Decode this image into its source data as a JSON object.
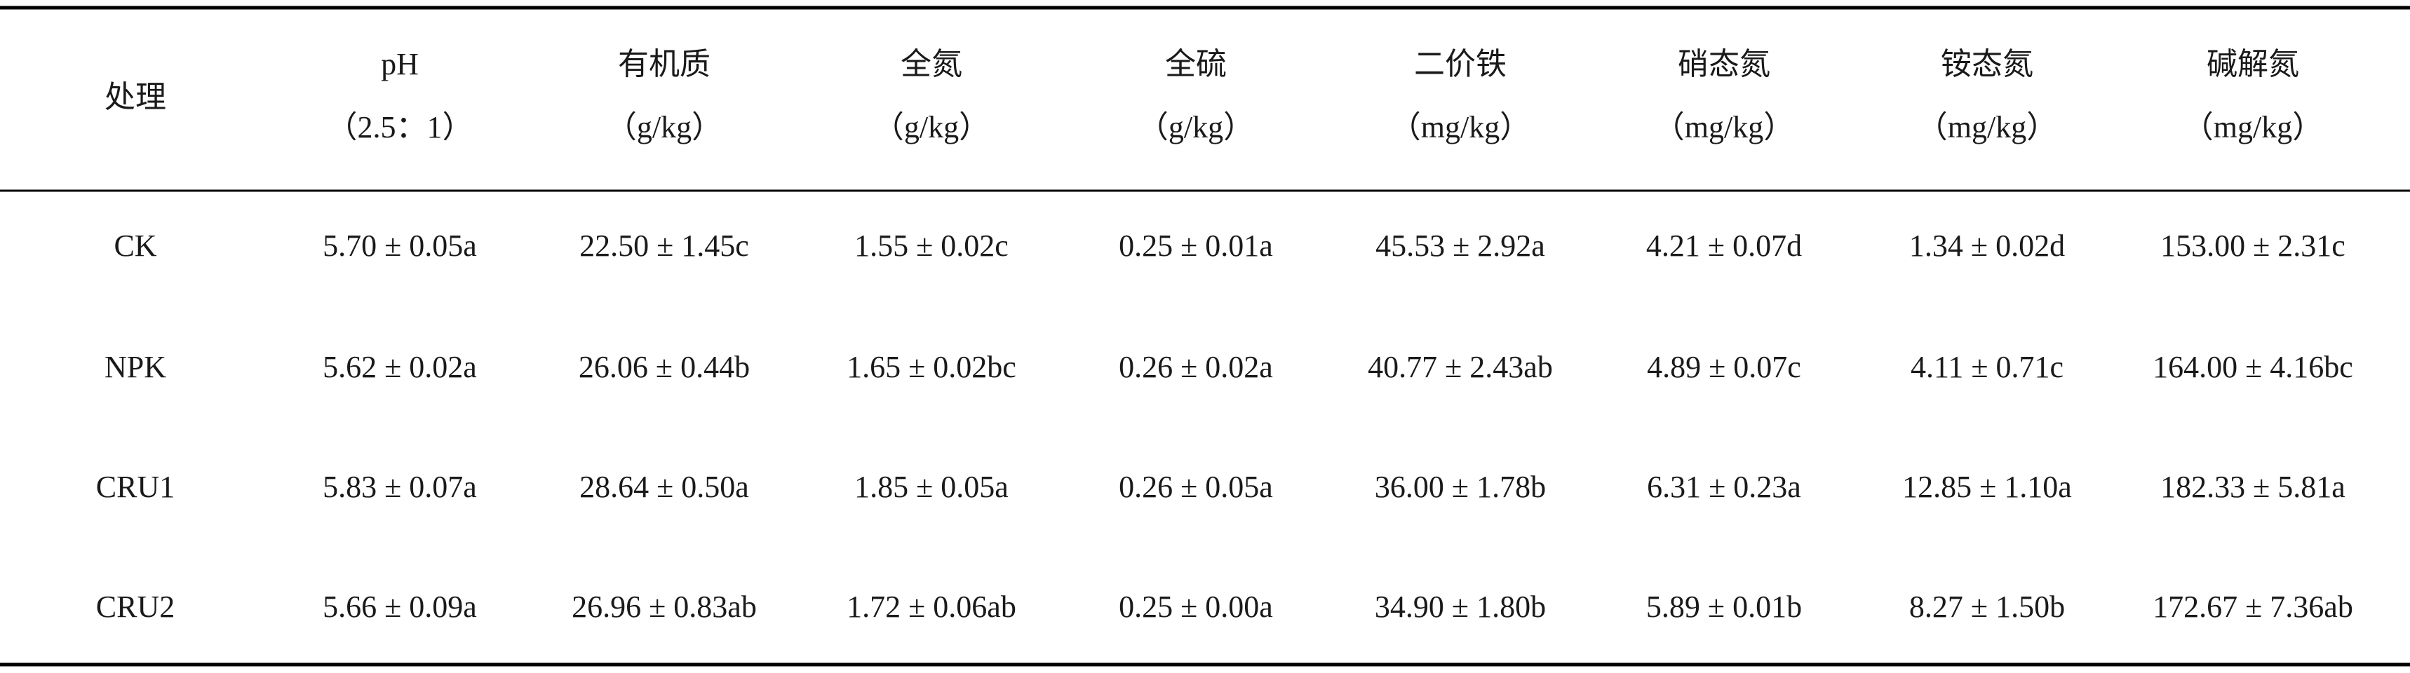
{
  "table": {
    "header": [
      {
        "name": "处理"
      },
      {
        "name": "pH",
        "unit": "（2.5：1）"
      },
      {
        "name": "有机质",
        "unit": "（g/kg）"
      },
      {
        "name": "全氮",
        "unit": "（g/kg）"
      },
      {
        "name": "全硫",
        "unit": "（g/kg）"
      },
      {
        "name": "二价铁",
        "unit": "（mg/kg）"
      },
      {
        "name": "硝态氮",
        "unit": "（mg/kg）"
      },
      {
        "name": "铵态氮",
        "unit": "（mg/kg）"
      },
      {
        "name": "碱解氮",
        "unit": "（mg/kg）"
      }
    ],
    "rows": [
      [
        "CK",
        "5.70 ± 0.05a",
        "22.50 ± 1.45c",
        "1.55 ± 0.02c",
        "0.25 ± 0.01a",
        "45.53 ± 2.92a",
        "4.21 ± 0.07d",
        "1.34 ± 0.02d",
        "153.00 ± 2.31c"
      ],
      [
        "NPK",
        "5.62 ± 0.02a",
        "26.06 ± 0.44b",
        "1.65 ± 0.02bc",
        "0.26 ± 0.02a",
        "40.77 ± 2.43ab",
        "4.89 ± 0.07c",
        "4.11 ± 0.71c",
        "164.00 ± 4.16bc"
      ],
      [
        "CRU1",
        "5.83 ± 0.07a",
        "28.64 ± 0.50a",
        "1.85 ± 0.05a",
        "0.26 ± 0.05a",
        "36.00 ± 1.78b",
        "6.31 ± 0.23a",
        "12.85 ± 1.10a",
        "182.33 ± 5.81a"
      ],
      [
        "CRU2",
        "5.66 ± 0.09a",
        "26.96 ± 0.83ab",
        "1.72 ± 0.06ab",
        "0.25 ± 0.00a",
        "34.90 ± 1.80b",
        "5.89 ± 0.01b",
        "8.27 ± 1.50b",
        "172.67 ± 7.36ab"
      ]
    ]
  }
}
